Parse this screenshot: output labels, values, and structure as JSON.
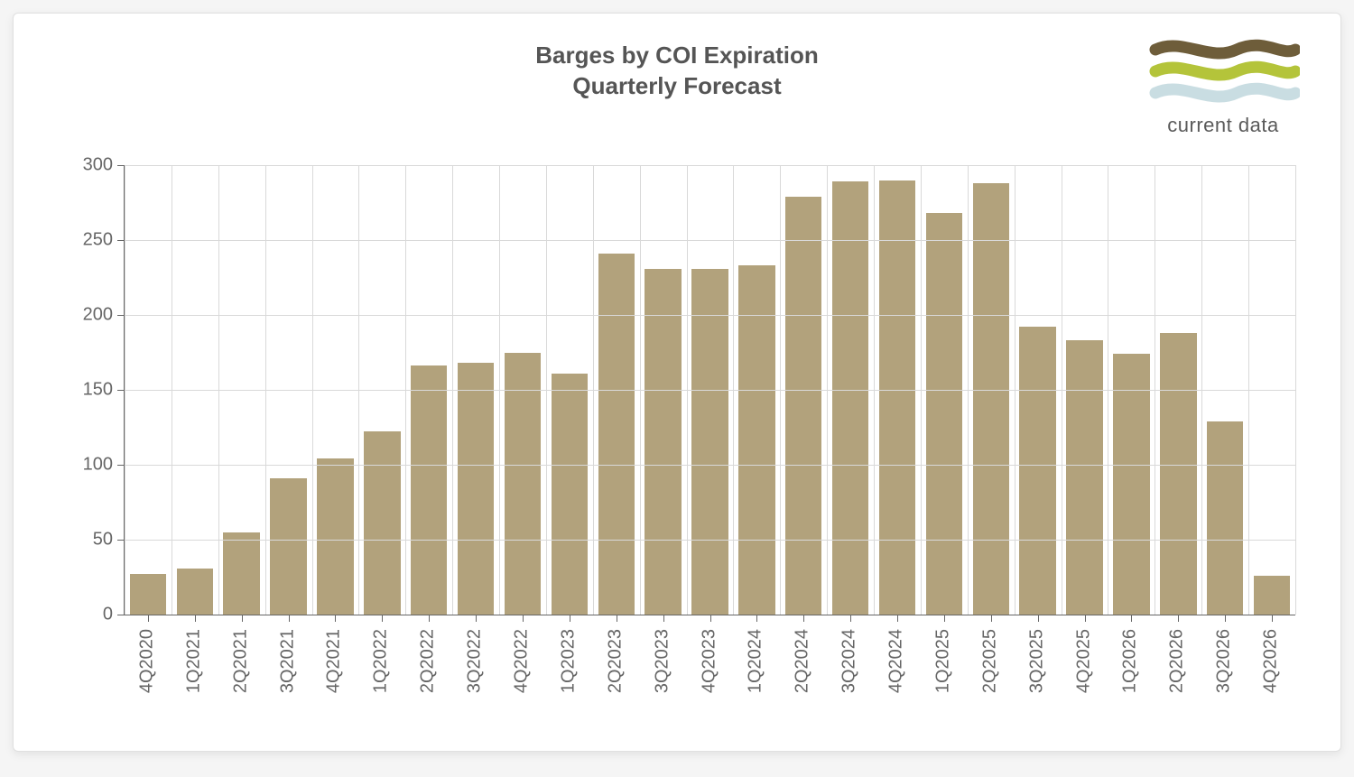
{
  "chart": {
    "type": "bar",
    "title_line1": "Barges by COI Expiration",
    "title_line2": "Quarterly Forecast",
    "title_fontsize": 26,
    "title_color": "#555555",
    "categories": [
      "4Q2020",
      "1Q2021",
      "2Q2021",
      "3Q2021",
      "4Q2021",
      "1Q2022",
      "2Q2022",
      "3Q2022",
      "4Q2022",
      "1Q2023",
      "2Q2023",
      "3Q2023",
      "4Q2023",
      "1Q2024",
      "2Q2024",
      "3Q2024",
      "4Q2024",
      "1Q2025",
      "2Q2025",
      "3Q2025",
      "4Q2025",
      "1Q2026",
      "2Q2026",
      "3Q2026",
      "4Q2026"
    ],
    "values": [
      27,
      31,
      55,
      91,
      104,
      122,
      166,
      168,
      175,
      161,
      241,
      231,
      231,
      233,
      279,
      289,
      290,
      268,
      288,
      192,
      183,
      174,
      188,
      129,
      26
    ],
    "bar_color": "#b2a27c",
    "bar_width_ratio": 0.78,
    "ylim": [
      0,
      300
    ],
    "ytick_step": 50,
    "yticks": [
      0,
      50,
      100,
      150,
      200,
      250,
      300
    ],
    "grid_color": "#d9d9d9",
    "axis_color": "#666666",
    "tick_label_fontsize": 20,
    "tick_label_color": "#666666",
    "background_color": "#ffffff",
    "xlabel_rotation": -90
  },
  "logo": {
    "brand_text": "current data",
    "wave_colors": [
      "#6e5d3a",
      "#b4c43a",
      "#c9dde2"
    ],
    "text_color": "#5a5a5a",
    "text_fontsize": 22
  }
}
